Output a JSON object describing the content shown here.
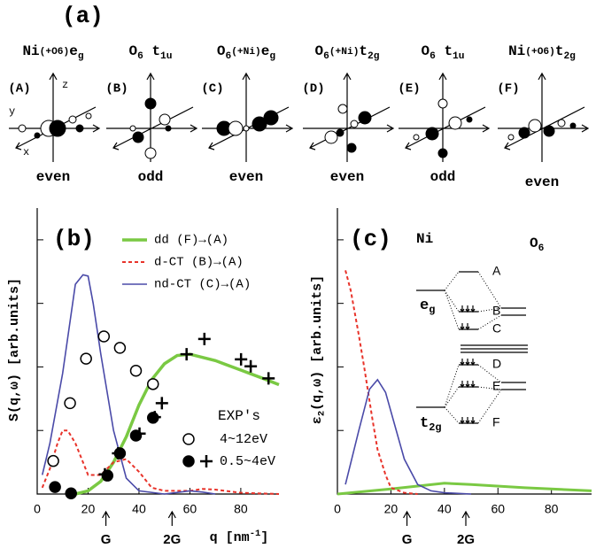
{
  "panel_a": {
    "title": "(a)",
    "orbitals": [
      {
        "letter": "(A)",
        "label": [
          {
            "t": "Ni"
          },
          {
            "t": "(+O6)",
            "small": true
          },
          {
            "t": "e"
          },
          {
            "t": "g",
            "sub": true
          }
        ],
        "parity": "even"
      },
      {
        "letter": "(B)",
        "label": [
          {
            "t": "O"
          },
          {
            "t": "6",
            "sub": true
          },
          {
            "t": " t"
          },
          {
            "t": "1u",
            "sub": true
          }
        ],
        "parity": "odd"
      },
      {
        "letter": "(C)",
        "label": [
          {
            "t": "O"
          },
          {
            "t": "6",
            "sub": true
          },
          {
            "t": "(+Ni)",
            "small": true
          },
          {
            "t": "e"
          },
          {
            "t": "g",
            "sub": true
          }
        ],
        "parity": "even"
      },
      {
        "letter": "(D)",
        "label": [
          {
            "t": "O"
          },
          {
            "t": "6",
            "sub": true
          },
          {
            "t": "(+Ni)",
            "small": true
          },
          {
            "t": "t"
          },
          {
            "t": "2g",
            "sub": true
          }
        ],
        "parity": "even"
      },
      {
        "letter": "(E)",
        "label": [
          {
            "t": "O"
          },
          {
            "t": "6",
            "sub": true
          },
          {
            "t": " t"
          },
          {
            "t": "1u",
            "sub": true
          }
        ],
        "parity": "odd"
      },
      {
        "letter": "(F)",
        "label": [
          {
            "t": "Ni"
          },
          {
            "t": "(+O6)",
            "small": true
          },
          {
            "t": "t"
          },
          {
            "t": "2g",
            "sub": true
          }
        ],
        "parity": "even"
      }
    ],
    "axis_labels": {
      "x": "x",
      "y": "y",
      "z": "z"
    }
  },
  "chart_data": [
    {
      "type": "line",
      "title": "(b)",
      "ylabel": [
        {
          "t": "S(q,ω)  [arb.units]"
        }
      ],
      "xlabel": [
        {
          "t": "q  [nm"
        },
        {
          "t": "-1",
          "sup": true
        },
        {
          "t": "]"
        }
      ],
      "xlim": [
        0,
        95
      ],
      "ylim": [
        0,
        4.5
      ],
      "xticks": [
        0,
        20,
        40,
        60,
        80
      ],
      "yticks": [
        0,
        1,
        2,
        3,
        4
      ],
      "legend": "upper right",
      "exp_title": "EXP's",
      "annotations": [
        {
          "text": "G",
          "x": 27
        },
        {
          "text": "2G",
          "x": 53
        }
      ],
      "series": [
        {
          "name": "dd (F)→(A)",
          "color": "#7ac943",
          "width": 3.5,
          "x": [
            15,
            20,
            25,
            30,
            35,
            40,
            45,
            50,
            55,
            60,
            70,
            80,
            90,
            95
          ],
          "values": [
            0,
            0.05,
            0.2,
            0.5,
            0.9,
            1.4,
            1.8,
            2.05,
            2.18,
            2.2,
            2.1,
            1.95,
            1.8,
            1.72
          ]
        },
        {
          "name": "d-CT (B)→(A)",
          "color": "#e8332a",
          "width": 2,
          "dash": true,
          "x": [
            2,
            5,
            8,
            10,
            12,
            15,
            20,
            25,
            30,
            35,
            40,
            45,
            50,
            60,
            65,
            70,
            80,
            95
          ],
          "values": [
            0.1,
            0.4,
            0.8,
            1.0,
            1.0,
            0.8,
            0.3,
            0.3,
            0.5,
            0.55,
            0.35,
            0.1,
            0.05,
            0.05,
            0.08,
            0.07,
            0.02,
            0
          ]
        },
        {
          "name": "nd-CT (C)→(A)",
          "color": "#4a4aa8",
          "width": 1.6,
          "x": [
            2,
            5,
            10,
            15,
            18,
            20,
            22,
            25,
            30,
            35,
            40,
            50,
            60,
            65,
            70
          ],
          "values": [
            0.3,
            0.8,
            1.9,
            3.3,
            3.45,
            3.43,
            3.0,
            2.2,
            1.0,
            0.25,
            0.05,
            0,
            0.05,
            0.03,
            0
          ]
        },
        {
          "name": "4~12eV",
          "marker": "open-circle",
          "color": "#000",
          "x": [
            6.3,
            12.9,
            19.2,
            26.2,
            32.5,
            38.8,
            45.5
          ],
          "values": [
            0.52,
            1.43,
            2.13,
            2.48,
            2.3,
            1.94,
            1.73
          ]
        },
        {
          "name": "0.5~4eV",
          "marker": "filled-circle",
          "color": "#000",
          "x": [
            7,
            13.3,
            27.6,
            32.5,
            38.8,
            45.5
          ],
          "values": [
            0.11,
            0.01,
            0.29,
            0.64,
            0.92,
            1.2
          ]
        },
        {
          "marker": "cross",
          "color": "#000",
          "x": [
            26.6,
            31.8,
            40.2,
            46.2,
            49,
            58.7,
            65.7,
            80.1,
            83.9,
            90.9
          ],
          "values": [
            0.31,
            0.64,
            0.95,
            1.21,
            1.43,
            2.2,
            2.44,
            2.12,
            2.01,
            1.82
          ]
        }
      ]
    },
    {
      "type": "line",
      "title": "(c)",
      "ylabel": [
        {
          "t": "ε"
        },
        {
          "t": "2",
          "sub": true
        },
        {
          "t": "(q,ω)  [arb.units]"
        }
      ],
      "xlim": [
        0,
        95
      ],
      "ylim": [
        0,
        4.5
      ],
      "xticks": [
        0,
        20,
        40,
        60,
        80
      ],
      "yticks": [
        0,
        1,
        2,
        3,
        4
      ],
      "annotations": [
        {
          "text": "G",
          "x": 26
        },
        {
          "text": "2G",
          "x": 48
        }
      ],
      "series": [
        {
          "color": "#7ac943",
          "width": 3,
          "x": [
            0,
            20,
            40,
            50,
            70,
            95
          ],
          "values": [
            0,
            0.08,
            0.17,
            0.15,
            0.1,
            0.05
          ]
        },
        {
          "color": "#e8332a",
          "width": 2,
          "dash": true,
          "x": [
            3,
            5,
            8,
            10,
            13,
            15,
            18,
            20,
            25,
            30
          ],
          "values": [
            3.52,
            3.2,
            2.5,
            2.0,
            1.2,
            0.7,
            0.3,
            0.1,
            0.02,
            0
          ]
        },
        {
          "color": "#4a4aa8",
          "width": 1.6,
          "x": [
            3,
            8,
            12,
            15,
            18,
            22,
            25,
            30,
            35,
            40,
            50
          ],
          "values": [
            0.15,
            1.0,
            1.65,
            1.8,
            1.6,
            1.0,
            0.55,
            0.15,
            0.05,
            0.02,
            0
          ]
        }
      ],
      "inset": {
        "left": [
          {
            "t": "Ni"
          }
        ],
        "right": [
          {
            "t": "O"
          },
          {
            "t": "6",
            "sub": true
          }
        ],
        "eg": [
          {
            "t": "e"
          },
          {
            "t": "g",
            "sub": true
          }
        ],
        "t2g": [
          {
            "t": "t"
          },
          {
            "t": "2g",
            "sub": true
          }
        ],
        "levels": [
          "A",
          "B",
          "C",
          "D",
          "E",
          "F"
        ]
      }
    }
  ]
}
